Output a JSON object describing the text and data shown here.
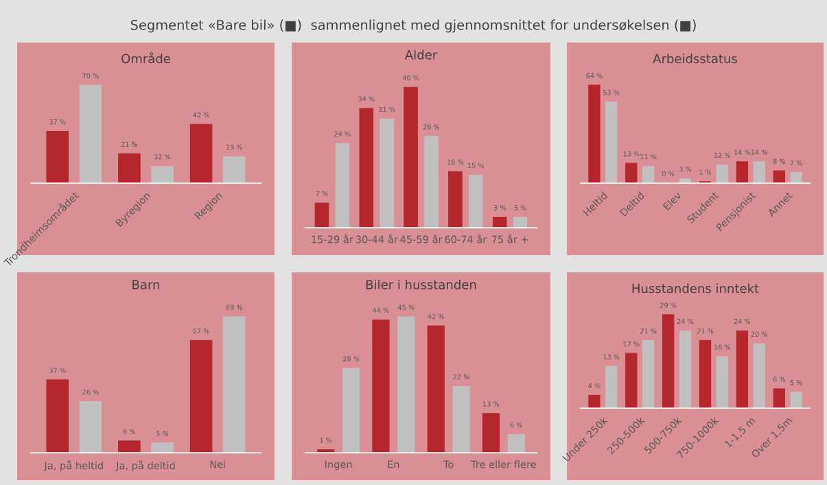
{
  "chart_data": [
    {
      "type": "other",
      "title": "Segmentet «Bare bil» (■)  sammenlignet med gjennomsnittet for undersøkelsen (■)"
    },
    {
      "type": "bar",
      "title": "Område",
      "categories": [
        "Trondheimsområdet",
        "Byregion",
        "Region"
      ],
      "series": [
        {
          "color": "#b5262d",
          "values": [
            37,
            21,
            42
          ],
          "value_labels": [
            "37 %",
            "21 %",
            "42 %"
          ]
        },
        {
          "color": "#c0c0c0",
          "values": [
            70,
            12,
            19
          ],
          "value_labels": [
            "70 %",
            "12 %",
            "19 %"
          ]
        }
      ]
    },
    {
      "type": "bar",
      "title": "Alder",
      "categories": [
        "15-29 år",
        "30-44 år",
        "45-59 år",
        "60-74 år",
        "75 år +"
      ],
      "series": [
        {
          "color": "#b5262d",
          "values": [
            7,
            34,
            40,
            16,
            3
          ],
          "value_labels": [
            "7 %",
            "34 %",
            "40 %",
            "16 %",
            "3 %"
          ]
        },
        {
          "color": "#c0c0c0",
          "values": [
            24,
            31,
            26,
            15,
            3
          ],
          "value_labels": [
            "24 %",
            "31 %",
            "26 %",
            "15 %",
            "3 %"
          ]
        }
      ]
    },
    {
      "type": "bar",
      "title": "Arbeidsstatus",
      "categories": [
        "Heltid",
        "Deltid",
        "Elev",
        "Student",
        "Pensjonist",
        "Annet"
      ],
      "series": [
        {
          "color": "#b5262d",
          "values": [
            64,
            13,
            0,
            1,
            14,
            8
          ],
          "value_labels": [
            "64 %",
            "13 %",
            "0 %",
            "1 %",
            "14 %",
            "8 %"
          ]
        },
        {
          "color": "#c0c0c0",
          "values": [
            53,
            11,
            3,
            12,
            14,
            7
          ],
          "value_labels": [
            "53 %",
            "11 %",
            "3 %",
            "12 %",
            "14 %",
            "7 %"
          ]
        }
      ]
    },
    {
      "type": "bar",
      "title": "Barn",
      "categories": [
        "Ja, på heltid",
        "Ja, på deltid",
        "Nei"
      ],
      "series": [
        {
          "color": "#b5262d",
          "values": [
            37,
            6,
            57
          ],
          "value_labels": [
            "37 %",
            "6 %",
            "57 %"
          ]
        },
        {
          "color": "#c0c0c0",
          "values": [
            26,
            5,
            69
          ],
          "value_labels": [
            "26 %",
            "5 %",
            "69 %"
          ]
        }
      ]
    },
    {
      "type": "bar",
      "title": "Biler i husstanden",
      "categories": [
        "Ingen",
        "En",
        "To",
        "Tre eller flere"
      ],
      "series": [
        {
          "color": "#b5262d",
          "values": [
            1,
            44,
            42,
            13
          ],
          "value_labels": [
            "1 %",
            "44 %",
            "42 %",
            "13 %"
          ]
        },
        {
          "color": "#c0c0c0",
          "values": [
            28,
            45,
            22,
            6
          ],
          "value_labels": [
            "28 %",
            "45 %",
            "22 %",
            "6 %"
          ]
        }
      ]
    },
    {
      "type": "bar",
      "title": "Husstandens inntekt",
      "categories": [
        "Under 250k",
        "250-500k",
        "500-750k",
        "750-1000k",
        "1-1,5 m",
        "Over 1,5m"
      ],
      "series": [
        {
          "color": "#b5262d",
          "values": [
            4,
            17,
            29,
            21,
            24,
            6
          ],
          "value_labels": [
            "4 %",
            "17 %",
            "29 %",
            "21 %",
            "24 %",
            "6 %"
          ]
        },
        {
          "color": "#c0c0c0",
          "values": [
            13,
            21,
            24,
            16,
            20,
            5
          ],
          "value_labels": [
            "13 %",
            "21 %",
            "24 %",
            "16 %",
            "20 %",
            "5 %"
          ]
        }
      ]
    }
  ]
}
